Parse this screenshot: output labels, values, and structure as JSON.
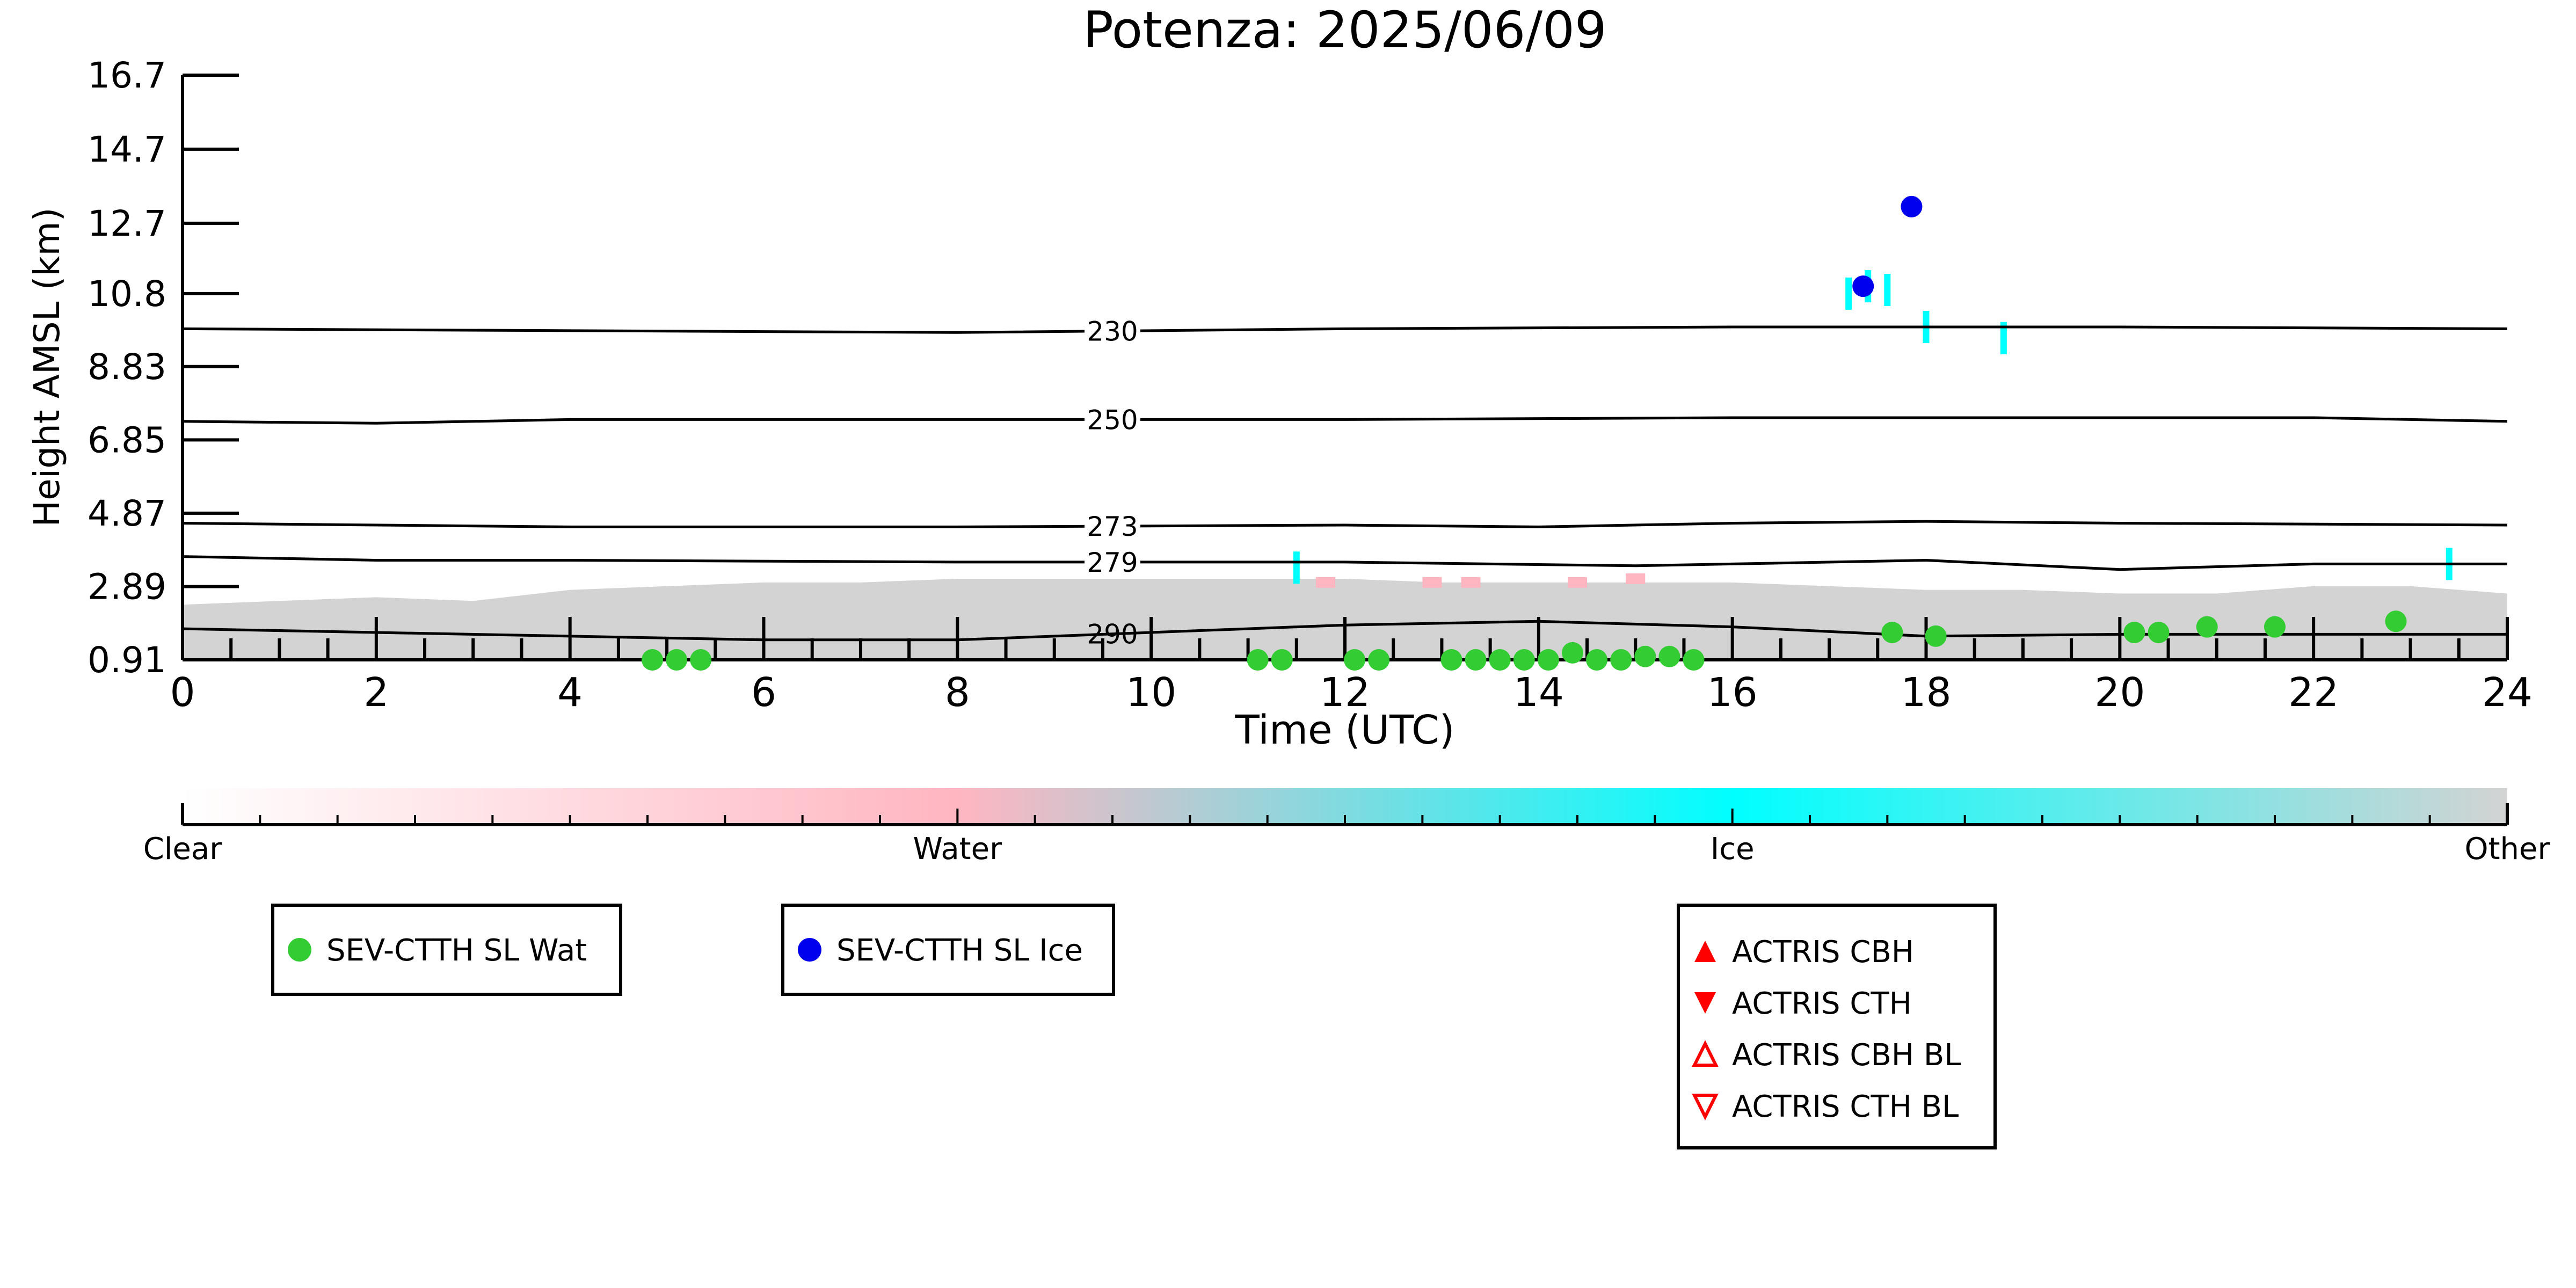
{
  "chart_data": {
    "type": "scatter",
    "title": "Potenza: 2025/06/09",
    "xlabel": "Time (UTC)",
    "ylabel": "Height AMSL (km)",
    "xlim": [
      0,
      24
    ],
    "ylim": [
      0.91,
      16.7
    ],
    "x_ticks": [
      0,
      2,
      4,
      6,
      8,
      10,
      12,
      14,
      16,
      18,
      20,
      22,
      24
    ],
    "x_tick_labels": [
      "0",
      "2",
      "4",
      "6",
      "8",
      "10",
      "12",
      "14",
      "16",
      "18",
      "20",
      "22",
      "24"
    ],
    "y_ticks": [
      0.91,
      2.89,
      4.87,
      6.85,
      8.83,
      10.8,
      12.7,
      14.7,
      16.7
    ],
    "y_tick_labels": [
      "0.91",
      "2.89",
      "4.87",
      "6.85",
      "8.83",
      "10.8",
      "12.7",
      "14.7",
      "16.7"
    ],
    "grid": false,
    "background_classification": {
      "colors": {
        "clear": "#ffffff",
        "water": "#ffb6c1",
        "ice": "#00ffff",
        "other": "#d3d3d3"
      },
      "other_layer_top": [
        [
          0,
          2.4
        ],
        [
          1,
          2.5
        ],
        [
          2,
          2.6
        ],
        [
          3,
          2.5
        ],
        [
          4,
          2.8
        ],
        [
          5,
          2.9
        ],
        [
          6,
          3.0
        ],
        [
          7,
          3.0
        ],
        [
          8,
          3.1
        ],
        [
          9,
          3.1
        ],
        [
          10,
          3.1
        ],
        [
          11,
          3.1
        ],
        [
          12,
          3.1
        ],
        [
          13,
          3.0
        ],
        [
          14,
          3.0
        ],
        [
          15,
          3.0
        ],
        [
          16,
          3.0
        ],
        [
          17,
          2.9
        ],
        [
          18,
          2.8
        ],
        [
          19,
          2.8
        ],
        [
          20,
          2.7
        ],
        [
          21,
          2.7
        ],
        [
          22,
          2.9
        ],
        [
          23,
          2.9
        ],
        [
          24,
          2.7
        ]
      ],
      "ice_patches": [
        [
          17.2,
          10.8
        ],
        [
          17.4,
          11.0
        ],
        [
          17.6,
          10.9
        ],
        [
          18.0,
          9.9
        ],
        [
          18.8,
          9.6
        ],
        [
          11.5,
          3.4
        ],
        [
          23.4,
          3.5
        ]
      ],
      "water_patches": [
        [
          11.8,
          3.0
        ],
        [
          12.9,
          3.0
        ],
        [
          13.3,
          3.0
        ],
        [
          14.4,
          3.0
        ],
        [
          15.0,
          3.1
        ]
      ]
    },
    "temperature_contours": [
      {
        "label": "230",
        "label_x": 9.6,
        "points": [
          [
            0,
            9.85
          ],
          [
            4,
            9.8
          ],
          [
            8,
            9.75
          ],
          [
            12,
            9.85
          ],
          [
            16,
            9.9
          ],
          [
            20,
            9.9
          ],
          [
            24,
            9.85
          ]
        ]
      },
      {
        "label": "250",
        "label_x": 9.6,
        "points": [
          [
            0,
            7.35
          ],
          [
            2,
            7.3
          ],
          [
            4,
            7.4
          ],
          [
            8,
            7.4
          ],
          [
            12,
            7.4
          ],
          [
            16,
            7.45
          ],
          [
            20,
            7.45
          ],
          [
            22,
            7.45
          ],
          [
            24,
            7.35
          ]
        ]
      },
      {
        "label": "273",
        "label_x": 9.6,
        "points": [
          [
            0,
            4.6
          ],
          [
            4,
            4.5
          ],
          [
            8,
            4.5
          ],
          [
            12,
            4.55
          ],
          [
            14,
            4.5
          ],
          [
            16,
            4.6
          ],
          [
            18,
            4.65
          ],
          [
            20,
            4.6
          ],
          [
            24,
            4.55
          ]
        ]
      },
      {
        "label": "279",
        "label_x": 9.6,
        "points": [
          [
            0,
            3.7
          ],
          [
            2,
            3.6
          ],
          [
            4,
            3.6
          ],
          [
            8,
            3.55
          ],
          [
            12,
            3.55
          ],
          [
            15,
            3.45
          ],
          [
            16,
            3.5
          ],
          [
            18,
            3.6
          ],
          [
            20,
            3.35
          ],
          [
            22,
            3.5
          ],
          [
            24,
            3.5
          ]
        ]
      },
      {
        "label": "290",
        "label_x": 9.6,
        "points": [
          [
            0,
            1.75
          ],
          [
            4,
            1.55
          ],
          [
            6,
            1.45
          ],
          [
            8,
            1.45
          ],
          [
            10,
            1.65
          ],
          [
            12,
            1.85
          ],
          [
            14,
            1.95
          ],
          [
            16,
            1.8
          ],
          [
            18,
            1.55
          ],
          [
            20,
            1.6
          ],
          [
            22,
            1.6
          ],
          [
            24,
            1.6
          ]
        ]
      }
    ],
    "series": [
      {
        "name": "SEV-CTTH SL Wat",
        "color": "#33cc33",
        "marker": "circle",
        "x": [
          4.85,
          5.1,
          5.35,
          11.1,
          11.35,
          12.1,
          12.35,
          13.1,
          13.35,
          13.6,
          13.85,
          14.1,
          14.35,
          14.6,
          14.85,
          15.1,
          15.35,
          15.6,
          17.65,
          18.1,
          20.15,
          20.4,
          20.9,
          21.6,
          22.85
        ],
        "y": [
          0.91,
          0.91,
          0.91,
          0.91,
          0.91,
          0.91,
          0.91,
          0.91,
          0.91,
          0.91,
          0.91,
          0.91,
          1.1,
          0.91,
          0.91,
          1.0,
          1.0,
          0.91,
          1.65,
          1.55,
          1.65,
          1.65,
          1.8,
          1.8,
          1.95
        ]
      },
      {
        "name": "SEV-CTTH SL Ice",
        "color": "#0000ee",
        "marker": "circle",
        "x": [
          17.35,
          17.85
        ],
        "y": [
          11.0,
          13.15
        ]
      }
    ],
    "colorbar": {
      "labels": [
        "Clear",
        "Water",
        "Ice",
        "Other"
      ],
      "stops": [
        "#ffffff",
        "#ffb6c1",
        "#00ffff",
        "#d3d3d3"
      ]
    },
    "legends": [
      {
        "entries": [
          {
            "label": "SEV-CTTH SL Wat",
            "marker": "circle",
            "color": "#33cc33"
          }
        ]
      },
      {
        "entries": [
          {
            "label": "SEV-CTTH SL Ice",
            "marker": "circle",
            "color": "#0000ee"
          }
        ]
      },
      {
        "entries": [
          {
            "label": "ACTRIS CBH",
            "marker": "triangle-up-filled",
            "color": "#ff0000"
          },
          {
            "label": "ACTRIS CTH",
            "marker": "triangle-down-filled",
            "color": "#ff0000"
          },
          {
            "label": "ACTRIS CBH BL",
            "marker": "triangle-up-open",
            "color": "#ff0000"
          },
          {
            "label": "ACTRIS CTH BL",
            "marker": "triangle-down-open",
            "color": "#ff0000"
          }
        ]
      }
    ]
  }
}
